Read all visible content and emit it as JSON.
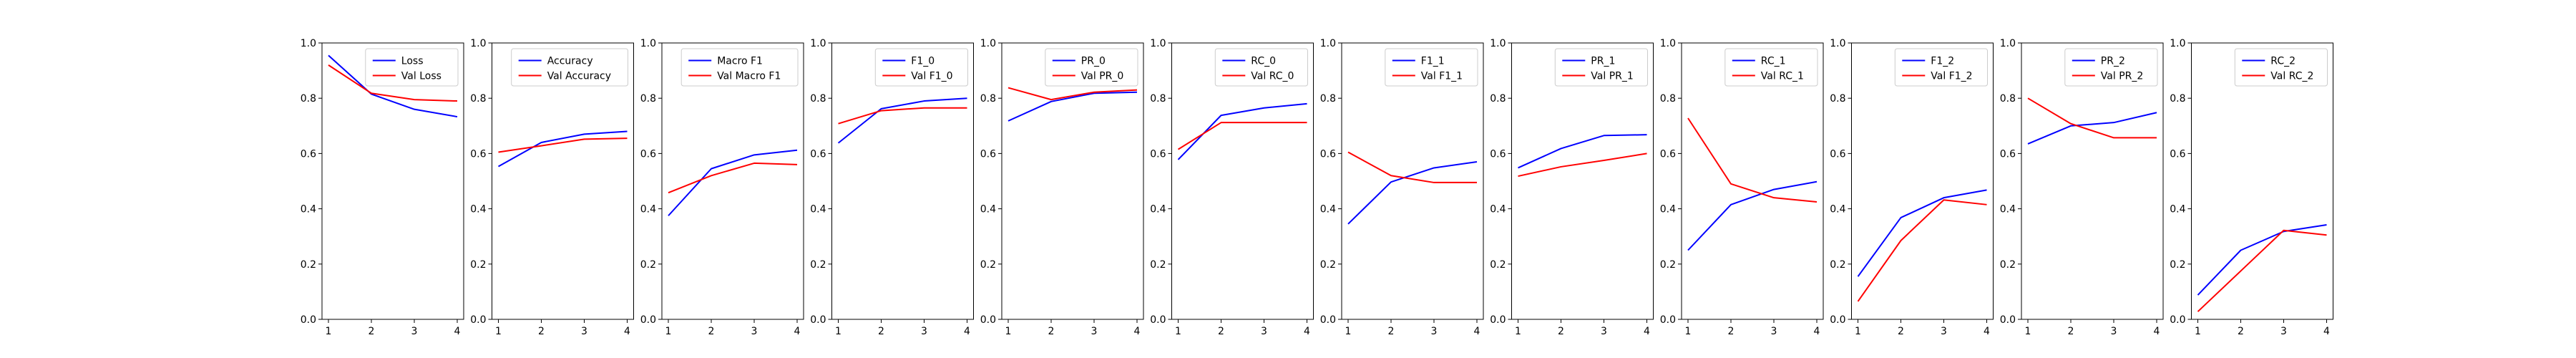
{
  "chart_data": [
    {
      "type": "line",
      "x": [
        1,
        2,
        3,
        4
      ],
      "xlim": [
        0.85,
        4.15
      ],
      "ylim": [
        0,
        1.0
      ],
      "xticks": [
        "1",
        "2",
        "3",
        "4"
      ],
      "yticks": [
        "0.0",
        "0.2",
        "0.4",
        "0.6",
        "0.8",
        "1.0"
      ],
      "legend": "upper right",
      "series": [
        {
          "name": "Loss",
          "color": "#0000ff",
          "values": [
            0.955,
            0.815,
            0.76,
            0.733
          ]
        },
        {
          "name": "Val Loss",
          "color": "#ff0000",
          "values": [
            0.92,
            0.818,
            0.795,
            0.79
          ]
        }
      ]
    },
    {
      "type": "line",
      "x": [
        1,
        2,
        3,
        4
      ],
      "xlim": [
        0.85,
        4.15
      ],
      "ylim": [
        0,
        1.0
      ],
      "xticks": [
        "1",
        "2",
        "3",
        "4"
      ],
      "yticks": [
        "0.0",
        "0.2",
        "0.4",
        "0.6",
        "0.8",
        "1.0"
      ],
      "legend": "upper right",
      "series": [
        {
          "name": "Accuracy",
          "color": "#0000ff",
          "values": [
            0.553,
            0.64,
            0.67,
            0.68
          ]
        },
        {
          "name": "Val Accuracy",
          "color": "#ff0000",
          "values": [
            0.605,
            0.628,
            0.652,
            0.655
          ]
        }
      ]
    },
    {
      "type": "line",
      "x": [
        1,
        2,
        3,
        4
      ],
      "xlim": [
        0.85,
        4.15
      ],
      "ylim": [
        0,
        1.0
      ],
      "xticks": [
        "1",
        "2",
        "3",
        "4"
      ],
      "yticks": [
        "0.0",
        "0.2",
        "0.4",
        "0.6",
        "0.8",
        "1.0"
      ],
      "legend": "upper right",
      "series": [
        {
          "name": "Macro F1",
          "color": "#0000ff",
          "values": [
            0.375,
            0.545,
            0.595,
            0.612
          ]
        },
        {
          "name": "Val Macro F1",
          "color": "#ff0000",
          "values": [
            0.458,
            0.52,
            0.565,
            0.56
          ]
        }
      ]
    },
    {
      "type": "line",
      "x": [
        1,
        2,
        3,
        4
      ],
      "xlim": [
        0.85,
        4.15
      ],
      "ylim": [
        0,
        1.0
      ],
      "xticks": [
        "1",
        "2",
        "3",
        "4"
      ],
      "yticks": [
        "0.0",
        "0.2",
        "0.4",
        "0.6",
        "0.8",
        "1.0"
      ],
      "legend": "upper right",
      "series": [
        {
          "name": "F1_0",
          "color": "#0000ff",
          "values": [
            0.638,
            0.762,
            0.79,
            0.8
          ]
        },
        {
          "name": "Val F1_0",
          "color": "#ff0000",
          "values": [
            0.708,
            0.755,
            0.765,
            0.765
          ]
        }
      ]
    },
    {
      "type": "line",
      "x": [
        1,
        2,
        3,
        4
      ],
      "xlim": [
        0.85,
        4.15
      ],
      "ylim": [
        0,
        1.0
      ],
      "xticks": [
        "1",
        "2",
        "3",
        "4"
      ],
      "yticks": [
        "0.0",
        "0.2",
        "0.4",
        "0.6",
        "0.8",
        "1.0"
      ],
      "legend": "upper right",
      "series": [
        {
          "name": "PR_0",
          "color": "#0000ff",
          "values": [
            0.718,
            0.788,
            0.818,
            0.822
          ]
        },
        {
          "name": "Val PR_0",
          "color": "#ff0000",
          "values": [
            0.838,
            0.795,
            0.822,
            0.83
          ]
        }
      ]
    },
    {
      "type": "line",
      "x": [
        1,
        2,
        3,
        4
      ],
      "xlim": [
        0.85,
        4.15
      ],
      "ylim": [
        0,
        1.0
      ],
      "xticks": [
        "1",
        "2",
        "3",
        "4"
      ],
      "yticks": [
        "0.0",
        "0.2",
        "0.4",
        "0.6",
        "0.8",
        "1.0"
      ],
      "legend": "upper right",
      "series": [
        {
          "name": "RC_0",
          "color": "#0000ff",
          "values": [
            0.578,
            0.738,
            0.765,
            0.78
          ]
        },
        {
          "name": "Val RC_0",
          "color": "#ff0000",
          "values": [
            0.615,
            0.712,
            0.712,
            0.712
          ]
        }
      ]
    },
    {
      "type": "line",
      "x": [
        1,
        2,
        3,
        4
      ],
      "xlim": [
        0.85,
        4.15
      ],
      "ylim": [
        0,
        1.0
      ],
      "xticks": [
        "1",
        "2",
        "3",
        "4"
      ],
      "yticks": [
        "0.0",
        "0.2",
        "0.4",
        "0.6",
        "0.8",
        "1.0"
      ],
      "legend": "upper right",
      "series": [
        {
          "name": "F1_1",
          "color": "#0000ff",
          "values": [
            0.345,
            0.497,
            0.548,
            0.57
          ]
        },
        {
          "name": "Val F1_1",
          "color": "#ff0000",
          "values": [
            0.605,
            0.52,
            0.495,
            0.495
          ]
        }
      ]
    },
    {
      "type": "line",
      "x": [
        1,
        2,
        3,
        4
      ],
      "xlim": [
        0.85,
        4.15
      ],
      "ylim": [
        0,
        1.0
      ],
      "xticks": [
        "1",
        "2",
        "3",
        "4"
      ],
      "yticks": [
        "0.0",
        "0.2",
        "0.4",
        "0.6",
        "0.8",
        "1.0"
      ],
      "legend": "upper right",
      "series": [
        {
          "name": "PR_1",
          "color": "#0000ff",
          "values": [
            0.548,
            0.618,
            0.665,
            0.668
          ]
        },
        {
          "name": "Val PR_1",
          "color": "#ff0000",
          "values": [
            0.518,
            0.552,
            0.575,
            0.6
          ]
        }
      ]
    },
    {
      "type": "line",
      "x": [
        1,
        2,
        3,
        4
      ],
      "xlim": [
        0.85,
        4.15
      ],
      "ylim": [
        0,
        1.0
      ],
      "xticks": [
        "1",
        "2",
        "3",
        "4"
      ],
      "yticks": [
        "0.0",
        "0.2",
        "0.4",
        "0.6",
        "0.8",
        "1.0"
      ],
      "legend": "upper right",
      "series": [
        {
          "name": "RC_1",
          "color": "#0000ff",
          "values": [
            0.25,
            0.415,
            0.47,
            0.498
          ]
        },
        {
          "name": "Val RC_1",
          "color": "#ff0000",
          "values": [
            0.728,
            0.49,
            0.44,
            0.425
          ]
        }
      ]
    },
    {
      "type": "line",
      "x": [
        1,
        2,
        3,
        4
      ],
      "xlim": [
        0.85,
        4.15
      ],
      "ylim": [
        0,
        1.0
      ],
      "xticks": [
        "1",
        "2",
        "3",
        "4"
      ],
      "yticks": [
        "0.0",
        "0.2",
        "0.4",
        "0.6",
        "0.8",
        "1.0"
      ],
      "legend": "upper right",
      "series": [
        {
          "name": "F1_2",
          "color": "#0000ff",
          "values": [
            0.155,
            0.368,
            0.44,
            0.468
          ]
        },
        {
          "name": "Val F1_2",
          "color": "#ff0000",
          "values": [
            0.065,
            0.285,
            0.432,
            0.415
          ]
        }
      ]
    },
    {
      "type": "line",
      "x": [
        1,
        2,
        3,
        4
      ],
      "xlim": [
        0.85,
        4.15
      ],
      "ylim": [
        0,
        1.0
      ],
      "xticks": [
        "1",
        "2",
        "3",
        "4"
      ],
      "yticks": [
        "0.0",
        "0.2",
        "0.4",
        "0.6",
        "0.8",
        "1.0"
      ],
      "legend": "upper right",
      "series": [
        {
          "name": "PR_2",
          "color": "#0000ff",
          "values": [
            0.635,
            0.7,
            0.712,
            0.748
          ]
        },
        {
          "name": "Val PR_2",
          "color": "#ff0000",
          "values": [
            0.8,
            0.708,
            0.657,
            0.657
          ]
        }
      ]
    },
    {
      "type": "line",
      "x": [
        1,
        2,
        3,
        4
      ],
      "xlim": [
        0.85,
        4.15
      ],
      "ylim": [
        0,
        1.0
      ],
      "xticks": [
        "1",
        "2",
        "3",
        "4"
      ],
      "yticks": [
        "0.0",
        "0.2",
        "0.4",
        "0.6",
        "0.8",
        "1.0"
      ],
      "legend": "upper right",
      "series": [
        {
          "name": "RC_2",
          "color": "#0000ff",
          "values": [
            0.088,
            0.25,
            0.318,
            0.342
          ]
        },
        {
          "name": "Val RC_2",
          "color": "#ff0000",
          "values": [
            0.028,
            0.175,
            0.322,
            0.305
          ]
        }
      ]
    }
  ]
}
